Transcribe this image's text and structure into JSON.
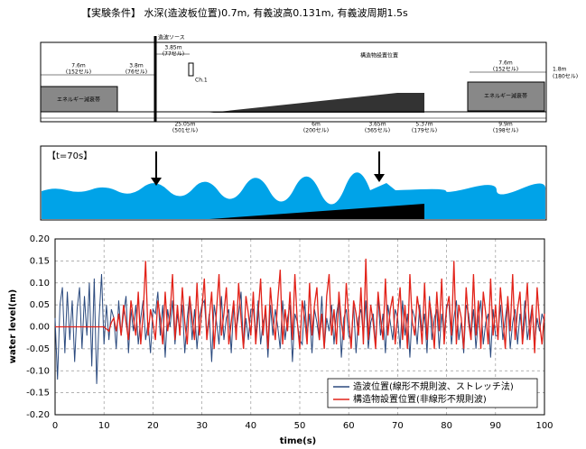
{
  "header": {
    "title": "【実験条件】 水深(造波板位置)0.7m, 有義波高0.131m, 有義波周期1.5s"
  },
  "diagram": {
    "labels": [
      "造波ソース",
      "3.85m",
      "(77セル)",
      "7.6m",
      "(152セル)",
      "3.8m",
      "(76セル)",
      "Ch.1",
      "構造物設置位置",
      "7.6m",
      "(152セル)",
      "1.8m",
      "(180セル)",
      "エネルギー減衰帯",
      "エネルギー減衰帯",
      "25.05m",
      "(501セル)",
      "6m",
      "(200セル)",
      "3.65m",
      "(365セル)",
      "5.37m",
      "(179セル)",
      "9.9m",
      "(198セル)"
    ]
  },
  "snapshot": {
    "label": "【t=70s】"
  },
  "chart_data": {
    "type": "line",
    "x_label": "time(s)",
    "y_label": "water level(m)",
    "x": [
      0,
      0.5,
      1,
      1.5,
      2,
      2.5,
      3,
      3.5,
      4,
      4.5,
      5,
      5.5,
      6,
      6.5,
      7,
      7.5,
      8,
      8.5,
      9,
      9.5,
      10,
      10.5,
      11,
      11.5,
      12,
      12.5,
      13,
      13.5,
      14,
      14.5,
      15,
      15.5,
      16,
      16.5,
      17,
      17.5,
      18,
      18.5,
      19,
      19.5,
      20,
      20.5,
      21,
      21.5,
      22,
      22.5,
      23,
      23.5,
      24,
      24.5,
      25,
      25.5,
      26,
      26.5,
      27,
      27.5,
      28,
      28.5,
      29,
      29.5,
      30,
      30.5,
      31,
      31.5,
      32,
      32.5,
      33,
      33.5,
      34,
      34.5,
      35,
      35.5,
      36,
      36.5,
      37,
      37.5,
      38,
      38.5,
      39,
      39.5,
      40,
      40.5,
      41,
      41.5,
      42,
      42.5,
      43,
      43.5,
      44,
      44.5,
      45,
      45.5,
      46,
      46.5,
      47,
      47.5,
      48,
      48.5,
      49,
      49.5,
      50,
      50.5,
      51,
      51.5,
      52,
      52.5,
      53,
      53.5,
      54,
      54.5,
      55,
      55.5,
      56,
      56.5,
      57,
      57.5,
      58,
      58.5,
      59,
      59.5,
      60,
      60.5,
      61,
      61.5,
      62,
      62.5,
      63,
      63.5,
      64,
      64.5,
      65,
      65.5,
      66,
      66.5,
      67,
      67.5,
      68,
      68.5,
      69,
      69.5,
      70,
      70.5,
      71,
      71.5,
      72,
      72.5,
      73,
      73.5,
      74,
      74.5,
      75,
      75.5,
      76,
      76.5,
      77,
      77.5,
      78,
      78.5,
      79,
      79.5,
      80,
      80.5,
      81,
      81.5,
      82,
      82.5,
      83,
      83.5,
      84,
      84.5,
      85,
      85.5,
      86,
      86.5,
      87,
      87.5,
      88,
      88.5,
      89,
      89.5,
      90,
      90.5,
      91,
      91.5,
      92,
      92.5,
      93,
      93.5,
      94,
      94.5,
      95,
      95.5,
      96,
      96.5,
      97,
      97.5,
      98,
      98.5,
      99,
      99.5,
      100
    ],
    "series": [
      {
        "name": "造波位置(線形不規則波、ストレッチ法)",
        "color": "#2b4a7e",
        "values": [
          0.02,
          -0.12,
          0.05,
          0.09,
          -0.06,
          0.08,
          -0.03,
          0.06,
          -0.08,
          0.04,
          0.09,
          -0.05,
          0.07,
          -0.02,
          0.1,
          -0.09,
          0.11,
          -0.13,
          0.02,
          0.12,
          -0.04,
          0.05,
          -0.03,
          0.04,
          0.02,
          -0.05,
          0.06,
          -0.02,
          0.03,
          0.07,
          -0.06,
          0.04,
          -0.01,
          0.05,
          -0.04,
          0.02,
          0.06,
          -0.03,
          0.01,
          -0.06,
          0.04,
          0.03,
          0.08,
          -0.02,
          0.05,
          -0.07,
          0.04,
          0.0,
          0.06,
          -0.04,
          0.03,
          -0.01,
          0.05,
          -0.06,
          0.02,
          0.07,
          -0.03,
          0.04,
          -0.05,
          0.02,
          0.05,
          0.06,
          -0.02,
          0.03,
          -0.08,
          0.05,
          0.01,
          -0.04,
          0.07,
          -0.03,
          0.02,
          0.04,
          -0.06,
          0.05,
          -0.01,
          0.03,
          0.08,
          -0.05,
          0.02,
          -0.03,
          0.04,
          0.04,
          -0.02,
          0.06,
          -0.04,
          0.01,
          0.03,
          -0.07,
          0.05,
          -0.02,
          0.04,
          0.0,
          -0.05,
          0.06,
          -0.03,
          0.02,
          0.05,
          -0.08,
          0.03,
          0.01,
          -0.03,
          -0.04,
          0.06,
          -0.02,
          0.03,
          -0.06,
          0.04,
          0.01,
          -0.03,
          0.07,
          -0.05,
          0.02,
          -0.01,
          0.05,
          -0.04,
          0.03,
          0.06,
          -0.07,
          0.02,
          0.04,
          -0.02,
          -0.03,
          0.05,
          -0.06,
          0.02,
          0.04,
          -0.02,
          0.06,
          -0.05,
          0.01,
          0.03,
          -0.04,
          0.07,
          -0.02,
          0.03,
          -0.06,
          0.05,
          0.01,
          -0.03,
          0.04,
          0.02,
          -0.05,
          0.06,
          -0.02,
          0.03,
          -0.07,
          0.04,
          0.02,
          -0.04,
          0.05,
          -0.01,
          0.03,
          -0.06,
          0.07,
          -0.03,
          0.02,
          0.04,
          -0.05,
          0.03,
          -0.02,
          0.05,
          0.05,
          -0.04,
          0.02,
          0.06,
          -0.03,
          0.01,
          -0.06,
          0.05,
          0.03,
          -0.02,
          0.04,
          -0.05,
          0.02,
          0.06,
          -0.04,
          0.01,
          0.03,
          -0.07,
          0.04,
          -0.02,
          -0.02,
          0.05,
          -0.03,
          0.02,
          0.06,
          -0.05,
          0.01,
          0.04,
          -0.04,
          0.03,
          -0.02,
          0.06,
          -0.03,
          0.01,
          0.05,
          -0.04,
          0.02,
          -0.01,
          0.03,
          0.01
        ]
      },
      {
        "name": "構造物設置位置(非線形不規則波)",
        "color": "#e2231a",
        "values": [
          0,
          0,
          0,
          0,
          0,
          0,
          0,
          0,
          0,
          0,
          0,
          0,
          0,
          0,
          0,
          0,
          0,
          0,
          0,
          0,
          0,
          -0.005,
          -0.01,
          0.01,
          0.02,
          -0.01,
          0.03,
          -0.02,
          0.05,
          0.01,
          -0.03,
          0.06,
          0.02,
          -0.02,
          0.08,
          -0.04,
          0.03,
          0.15,
          -0.02,
          0.04,
          0.01,
          -0.03,
          0.06,
          0.02,
          -0.04,
          0.08,
          -0.01,
          0.03,
          0.12,
          -0.03,
          0.05,
          -0.02,
          0.09,
          0.01,
          -0.04,
          0.07,
          0.02,
          -0.03,
          0.1,
          -0.02,
          0.04,
          0.11,
          -0.03,
          0.02,
          0.08,
          -0.05,
          0.04,
          0.12,
          -0.02,
          0.03,
          0.09,
          -0.04,
          0.01,
          0.06,
          -0.03,
          0.1,
          0.02,
          -0.05,
          0.07,
          0.03,
          -0.02,
          0.08,
          -0.04,
          0.03,
          0.11,
          -0.02,
          0.05,
          -0.05,
          0.09,
          0.02,
          -0.03,
          0.06,
          0.13,
          -0.04,
          0.04,
          -0.01,
          0.08,
          -0.03,
          0.12,
          0.01,
          -0.05,
          0.06,
          0.02,
          -0.04,
          0.1,
          -0.02,
          0.05,
          0.09,
          -0.03,
          0.03,
          -0.05,
          0.07,
          0.12,
          -0.02,
          0.04,
          -0.04,
          0.08,
          0.01,
          -0.03,
          0.1,
          0.02,
          -0.05,
          0.06,
          0.03,
          -0.02,
          0.09,
          -0.04,
          0.155,
          -0.03,
          0.05,
          0.01,
          -0.05,
          0.08,
          0.02,
          -0.03,
          0.11,
          -0.02,
          0.04,
          0.07,
          -0.04,
          0.03,
          0.09,
          -0.03,
          0.05,
          -0.05,
          0.12,
          0.01,
          -0.02,
          0.07,
          0.03,
          -0.04,
          0.1,
          -0.03,
          0.06,
          0.02,
          -0.05,
          0.08,
          -0.01,
          0.11,
          -0.04,
          0.04,
          0.07,
          -0.02,
          0.15,
          -0.04,
          0.05,
          0.02,
          -0.05,
          0.09,
          0.01,
          -0.03,
          0.12,
          -0.02,
          0.06,
          -0.05,
          0.08,
          0.03,
          -0.04,
          0.11,
          -0.02,
          0.05,
          -0.03,
          0.09,
          0.02,
          -0.05,
          0.07,
          -0.01,
          0.12,
          -0.03,
          0.04,
          0.08,
          -0.04,
          0.02,
          0.1,
          -0.03,
          0.05,
          -0.06,
          0.09,
          0.01,
          -0.04,
          0.03
        ]
      }
    ],
    "xlim": [
      0,
      100
    ],
    "xticks": [
      0,
      10,
      20,
      30,
      40,
      50,
      60,
      70,
      80,
      90,
      100
    ],
    "ylim": [
      -0.2,
      0.2
    ],
    "yticks": [
      {
        "value": 0.2,
        "label": "0.20"
      },
      {
        "value": 0.15,
        "label": "0.15"
      },
      {
        "value": 0.1,
        "label": "0.10"
      },
      {
        "value": 0.05,
        "label": "0.05"
      },
      {
        "value": 0,
        "label": "0.00"
      },
      {
        "value": -0.05,
        "label": "-0.05"
      },
      {
        "value": -0.1,
        "label": "-0.10"
      },
      {
        "value": -0.15,
        "label": "-0.15"
      },
      {
        "value": -0.2,
        "label": "-0.20"
      }
    ],
    "grid": true,
    "legend": "lower right"
  }
}
